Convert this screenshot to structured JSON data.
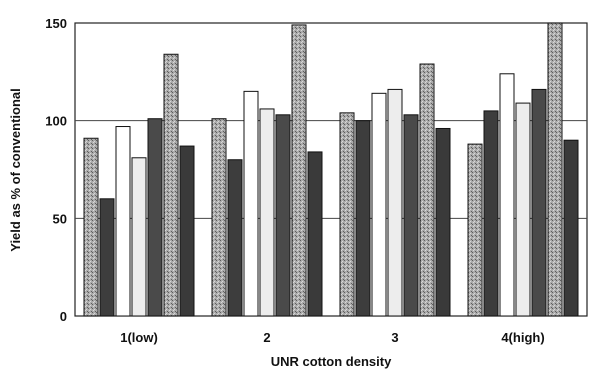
{
  "chart_data": {
    "type": "bar",
    "title": "",
    "xlabel": "UNR cotton density",
    "ylabel": "Yield as % of conventional",
    "categories": [
      "1(low)",
      "2",
      "3",
      "4(high)"
    ],
    "ylim": [
      0,
      150
    ],
    "yticks": [
      0,
      50,
      100,
      150
    ],
    "grid": true,
    "legend": "none",
    "series": [
      {
        "fill": "#a9a9a9",
        "pattern": "speckle",
        "values": [
          91,
          101,
          104,
          88
        ]
      },
      {
        "fill": "#3d3d3d",
        "pattern": "none",
        "values": [
          60,
          80,
          100,
          105
        ]
      },
      {
        "fill": "#ffffff",
        "pattern": "none",
        "values": [
          97,
          115,
          114,
          124
        ]
      },
      {
        "fill": "#ededed",
        "pattern": "none",
        "values": [
          81,
          106,
          116,
          109
        ]
      },
      {
        "fill": "#4a4a4a",
        "pattern": "none",
        "values": [
          101,
          103,
          103,
          116
        ]
      },
      {
        "fill": "#9a9a9a",
        "pattern": "speckle",
        "values": [
          134,
          149,
          129,
          150
        ]
      },
      {
        "fill": "#3a3a3a",
        "pattern": "none",
        "values": [
          87,
          84,
          96,
          90
        ]
      }
    ]
  }
}
